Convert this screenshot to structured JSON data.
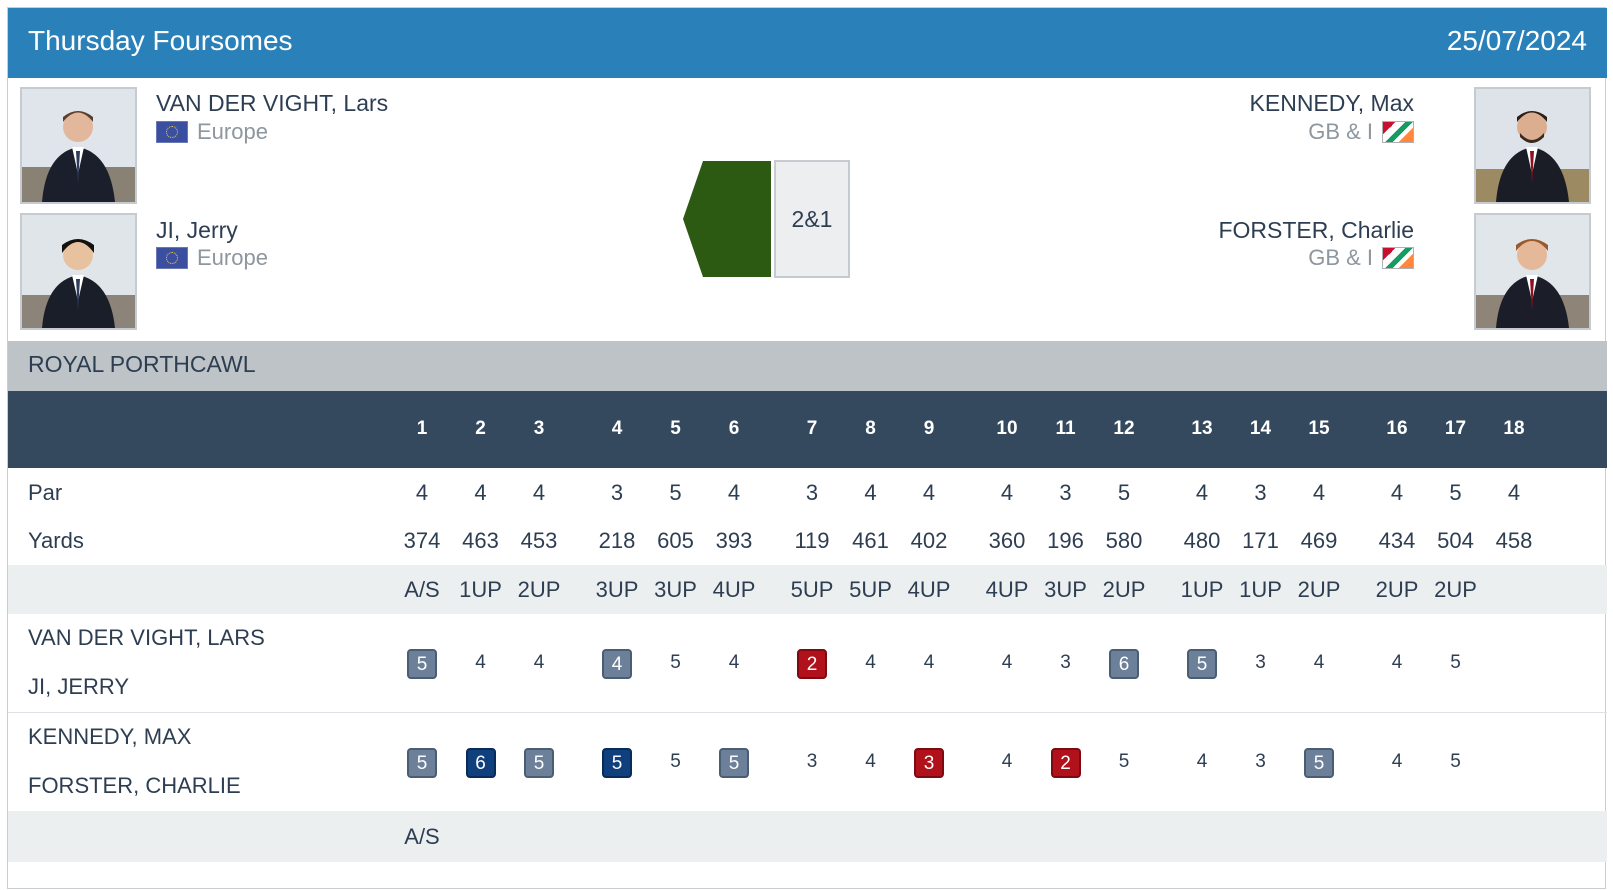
{
  "header": {
    "title": "Thursday Foursomes",
    "date": "25/07/2024"
  },
  "players": {
    "left": [
      {
        "name": "VAN DER VIGHT, Lars",
        "team": "Europe",
        "flag": "eu-flag-icon"
      },
      {
        "name": "JI, Jerry",
        "team": "Europe",
        "flag": "eu-flag-icon"
      }
    ],
    "right": [
      {
        "name": "KENNEDY, Max",
        "team": "GB & I",
        "flag": "gbi-flag-icon"
      },
      {
        "name": "FORSTER, Charlie",
        "team": "GB & I",
        "flag": "gbi-flag-icon"
      }
    ]
  },
  "match": {
    "result": "2&1",
    "winner_side": "left",
    "winner_color": "#2d5a12"
  },
  "course": {
    "name": "ROYAL PORTHCAWL"
  },
  "holes": [
    1,
    2,
    3,
    4,
    5,
    6,
    7,
    8,
    9,
    10,
    11,
    12,
    13,
    14,
    15,
    16,
    17,
    18
  ],
  "par_label": "Par",
  "par": [
    4,
    4,
    4,
    3,
    5,
    4,
    3,
    4,
    4,
    4,
    3,
    5,
    4,
    3,
    4,
    4,
    5,
    4
  ],
  "yards_label": "Yards",
  "yards": [
    374,
    463,
    453,
    218,
    605,
    393,
    119,
    461,
    402,
    360,
    196,
    580,
    480,
    171,
    469,
    434,
    504,
    458
  ],
  "status_top": [
    "A/S",
    "1UP",
    "2UP",
    "3UP",
    "3UP",
    "4UP",
    "5UP",
    "5UP",
    "4UP",
    "4UP",
    "3UP",
    "2UP",
    "1UP",
    "1UP",
    "2UP",
    "2UP",
    "2UP",
    ""
  ],
  "team_left": {
    "names": [
      "VAN DER VIGHT, LARS",
      "JI, JERRY"
    ],
    "scores": [
      5,
      4,
      4,
      4,
      5,
      4,
      2,
      4,
      4,
      4,
      3,
      6,
      5,
      3,
      4,
      4,
      5,
      null
    ]
  },
  "team_right": {
    "names": [
      "KENNEDY, MAX",
      "FORSTER, CHARLIE"
    ],
    "scores": [
      5,
      6,
      5,
      5,
      5,
      5,
      3,
      4,
      3,
      4,
      2,
      5,
      4,
      3,
      5,
      4,
      5,
      null
    ]
  },
  "status_bottom": [
    "A/S",
    "",
    "",
    "",
    "",
    "",
    "",
    "",
    "",
    "",
    "",
    "",
    "",
    "",
    "",
    "",
    "",
    ""
  ],
  "colors": {
    "header_blue": "#2a80b9",
    "hole_header": "#34495e",
    "course_bar": "#bec3c7",
    "bogey": "#6c809a",
    "double_bogey": "#0f3f7c",
    "birdie": "#b0111a"
  }
}
